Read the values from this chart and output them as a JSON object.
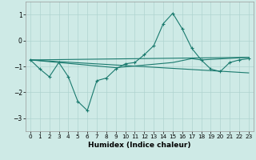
{
  "xlabel": "Humidex (Indice chaleur)",
  "bg_color": "#ceeae6",
  "grid_color": "#afd4d0",
  "line_color": "#1a7a6e",
  "xlim": [
    -0.5,
    23.5
  ],
  "ylim": [
    -3.5,
    1.5
  ],
  "yticks": [
    -3,
    -2,
    -1,
    0,
    1
  ],
  "xticks": [
    0,
    1,
    2,
    3,
    4,
    5,
    6,
    7,
    8,
    9,
    10,
    11,
    12,
    13,
    14,
    15,
    16,
    17,
    18,
    19,
    20,
    21,
    22,
    23
  ],
  "line1_x": [
    0,
    1,
    2,
    3,
    4,
    5,
    6,
    7,
    8,
    9,
    10,
    11,
    12,
    13,
    14,
    15,
    16,
    17,
    18,
    19,
    20,
    21,
    22,
    23
  ],
  "line1_y": [
    -0.75,
    -1.1,
    -1.4,
    -0.85,
    -1.4,
    -2.35,
    -2.7,
    -1.55,
    -1.45,
    -1.1,
    -0.9,
    -0.85,
    -0.55,
    -0.2,
    0.65,
    1.05,
    0.45,
    -0.3,
    -0.75,
    -1.1,
    -1.2,
    -0.85,
    -0.75,
    -0.7
  ],
  "line2_x": [
    0,
    23
  ],
  "line2_y": [
    -0.75,
    -0.65
  ],
  "line3_x": [
    0,
    23
  ],
  "line3_y": [
    -0.75,
    -1.25
  ],
  "line4_x": [
    0,
    3,
    9,
    15,
    17,
    18,
    23
  ],
  "line4_y": [
    -0.75,
    -0.85,
    -1.05,
    -0.85,
    -0.7,
    -0.75,
    -0.65
  ]
}
